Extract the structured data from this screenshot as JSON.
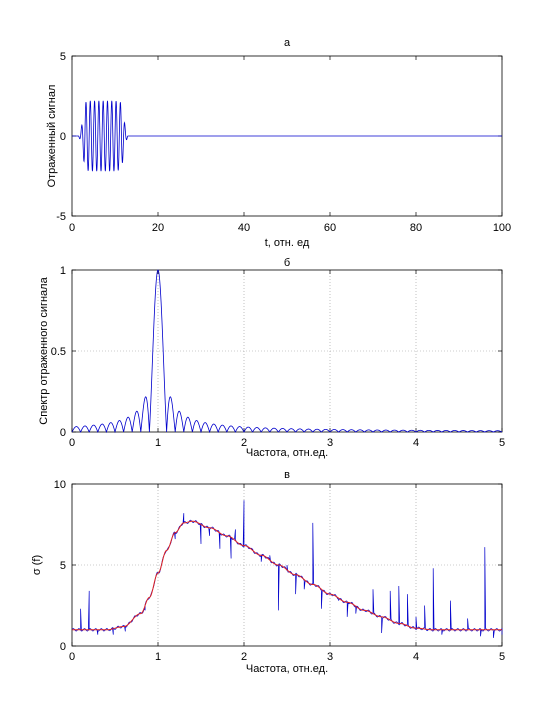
{
  "chart_data": [
    {
      "type": "line",
      "title": "а",
      "xlabel": "t, отн. ед",
      "ylabel": "Отраженный сигнал",
      "xlim": [
        0,
        100
      ],
      "ylim": [
        -5,
        5
      ],
      "xticks": [
        "0",
        "20",
        "40",
        "60",
        "80",
        "100"
      ],
      "yticks": [
        "-5",
        "0",
        "5"
      ],
      "grid": false,
      "series": [
        {
          "color": "#0000cc",
          "description_points": {
            "t": [
              0,
              1.5,
              2,
              2.5,
              3,
              4,
              6,
              8,
              10,
              11.5,
              12,
              12.5,
              13,
              100
            ],
            "envelope": [
              0,
              0,
              0.3,
              1.0,
              2.1,
              2.2,
              2.2,
              2.2,
              2.2,
              2.1,
              1.2,
              0.4,
              0,
              0
            ]
          },
          "carrier_period": 1
        }
      ]
    },
    {
      "type": "line",
      "title": "б",
      "xlabel": "Частота, отн.ед.",
      "ylabel": "Спектр отраженного сигнала",
      "xlim": [
        0,
        5
      ],
      "ylim": [
        0,
        1
      ],
      "xticks": [
        "0",
        "1",
        "2",
        "3",
        "4",
        "5"
      ],
      "yticks": [
        "0",
        "0.5",
        "1"
      ],
      "grid": true,
      "series": [
        {
          "color": "#0000cc",
          "peak_x": 1.0,
          "peak_y": 1.0,
          "main_lobe_half_width": 0.1
        }
      ]
    },
    {
      "type": "line",
      "title": "в",
      "xlabel": "Частота, отн.ед.",
      "ylabel": "σ (f)",
      "xlim": [
        0,
        5
      ],
      "ylim": [
        0,
        10
      ],
      "xticks": [
        "0",
        "1",
        "2",
        "3",
        "4",
        "5"
      ],
      "yticks": [
        "0",
        "5",
        "10"
      ],
      "grid": true,
      "series": [
        {
          "color": "#dd2222",
          "x": [
            0,
            0.4,
            0.6,
            0.8,
            0.9,
            1.0,
            1.1,
            1.2,
            1.3,
            1.4,
            1.6,
            1.8,
            2.0,
            2.2,
            2.4,
            2.6,
            2.8,
            3.0,
            3.2,
            3.4,
            3.6,
            3.8,
            4.0,
            4.2,
            4.4,
            4.6,
            4.8,
            5.0
          ],
          "values": [
            1.0,
            1.0,
            1.2,
            2.0,
            3.0,
            4.5,
            5.9,
            7.0,
            7.6,
            7.7,
            7.3,
            6.8,
            6.2,
            5.6,
            5.0,
            4.4,
            3.8,
            3.2,
            2.7,
            2.2,
            1.8,
            1.4,
            1.1,
            1.0,
            1.0,
            1.0,
            1.0,
            1.0
          ]
        },
        {
          "color": "#0000cc",
          "spikes": [
            [
              0.1,
              2.3
            ],
            [
              0.2,
              3.4
            ],
            [
              0.3,
              0.7
            ],
            [
              0.48,
              0.7
            ],
            [
              0.62,
              0.9
            ],
            [
              0.85,
              2.2
            ],
            [
              1.2,
              6.6
            ],
            [
              1.3,
              8.2
            ],
            [
              1.5,
              6.3
            ],
            [
              1.6,
              6.8
            ],
            [
              1.72,
              6.0
            ],
            [
              1.85,
              5.4
            ],
            [
              1.9,
              7.2
            ],
            [
              2.0,
              9.0
            ],
            [
              2.1,
              6.0
            ],
            [
              2.2,
              5.2
            ],
            [
              2.3,
              5.6
            ],
            [
              2.4,
              2.2
            ],
            [
              2.5,
              5.0
            ],
            [
              2.6,
              3.2
            ],
            [
              2.7,
              3.5
            ],
            [
              2.8,
              7.6
            ],
            [
              2.9,
              2.3
            ],
            [
              3.1,
              2.8
            ],
            [
              3.2,
              1.8
            ],
            [
              3.3,
              2.0
            ],
            [
              3.5,
              3.5
            ],
            [
              3.6,
              0.8
            ],
            [
              3.7,
              3.4
            ],
            [
              3.8,
              3.7
            ],
            [
              3.9,
              3.2
            ],
            [
              4.0,
              1.8
            ],
            [
              4.1,
              2.5
            ],
            [
              4.2,
              4.8
            ],
            [
              4.3,
              0.7
            ],
            [
              4.4,
              2.8
            ],
            [
              4.6,
              1.7
            ],
            [
              4.75,
              0.6
            ],
            [
              4.8,
              6.1
            ],
            [
              4.9,
              0.5
            ],
            [
              5.0,
              0.7
            ]
          ]
        }
      ]
    }
  ]
}
